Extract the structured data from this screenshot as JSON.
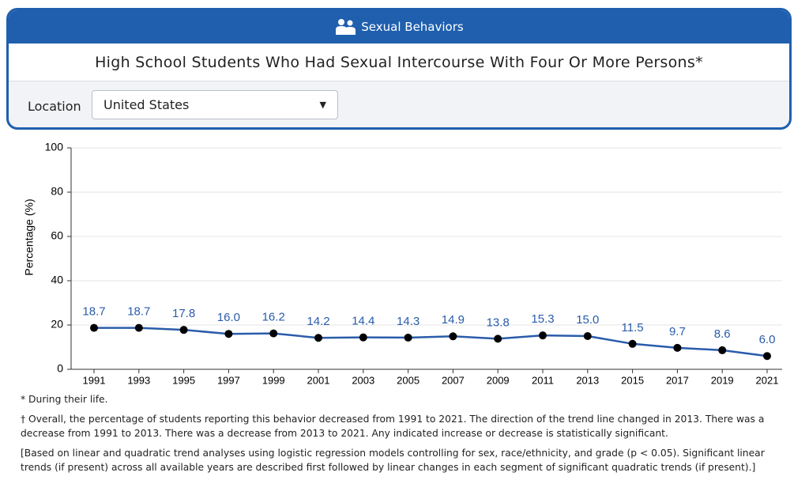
{
  "header": {
    "topic": "Sexual Behaviors",
    "title": "High School Students Who Had Sexual Intercourse With Four Or More Persons*"
  },
  "filter": {
    "label": "Location",
    "value": "United States"
  },
  "chart_data": {
    "type": "line",
    "y_label": "Percentage (%)",
    "categories": [
      "1991",
      "1993",
      "1995",
      "1997",
      "1999",
      "2001",
      "2003",
      "2005",
      "2007",
      "2009",
      "2011",
      "2013",
      "2015",
      "2017",
      "2019",
      "2021"
    ],
    "series": [
      {
        "color": "#2a5caa",
        "values": [
          18.7,
          18.7,
          17.8,
          16.0,
          16.2,
          14.2,
          14.4,
          14.3,
          14.9,
          13.8,
          15.3,
          15.0,
          11.5,
          9.7,
          8.6,
          6.0
        ],
        "value_labels": [
          "18.7",
          "18.7",
          "17.8",
          "16.0",
          "16.2",
          "14.2",
          "14.4",
          "14.3",
          "14.9",
          "13.8",
          "15.3",
          "15.0",
          "11.5",
          "9.7",
          "8.6",
          "6.0"
        ]
      }
    ],
    "ylim": [
      0,
      100
    ],
    "yticks": [
      0,
      20,
      40,
      60,
      80,
      100
    ],
    "grid": true
  },
  "notes": [
    "* During their life.",
    "† Overall, the percentage of students reporting this behavior decreased from 1991 to 2021. The direction of the trend line changed in 2013. There was a decrease from 1991 to 2013. There was a decrease from 2013 to 2021. Any indicated increase or decrease is statistically significant.",
    "[Based on linear and quadratic trend analyses using logistic regression models controlling for sex, race/ethnicity, and grade (p < 0.05). Significant linear trends (if present) across all available years are described first followed by linear changes in each segment of significant quadratic trends (if present).]"
  ]
}
